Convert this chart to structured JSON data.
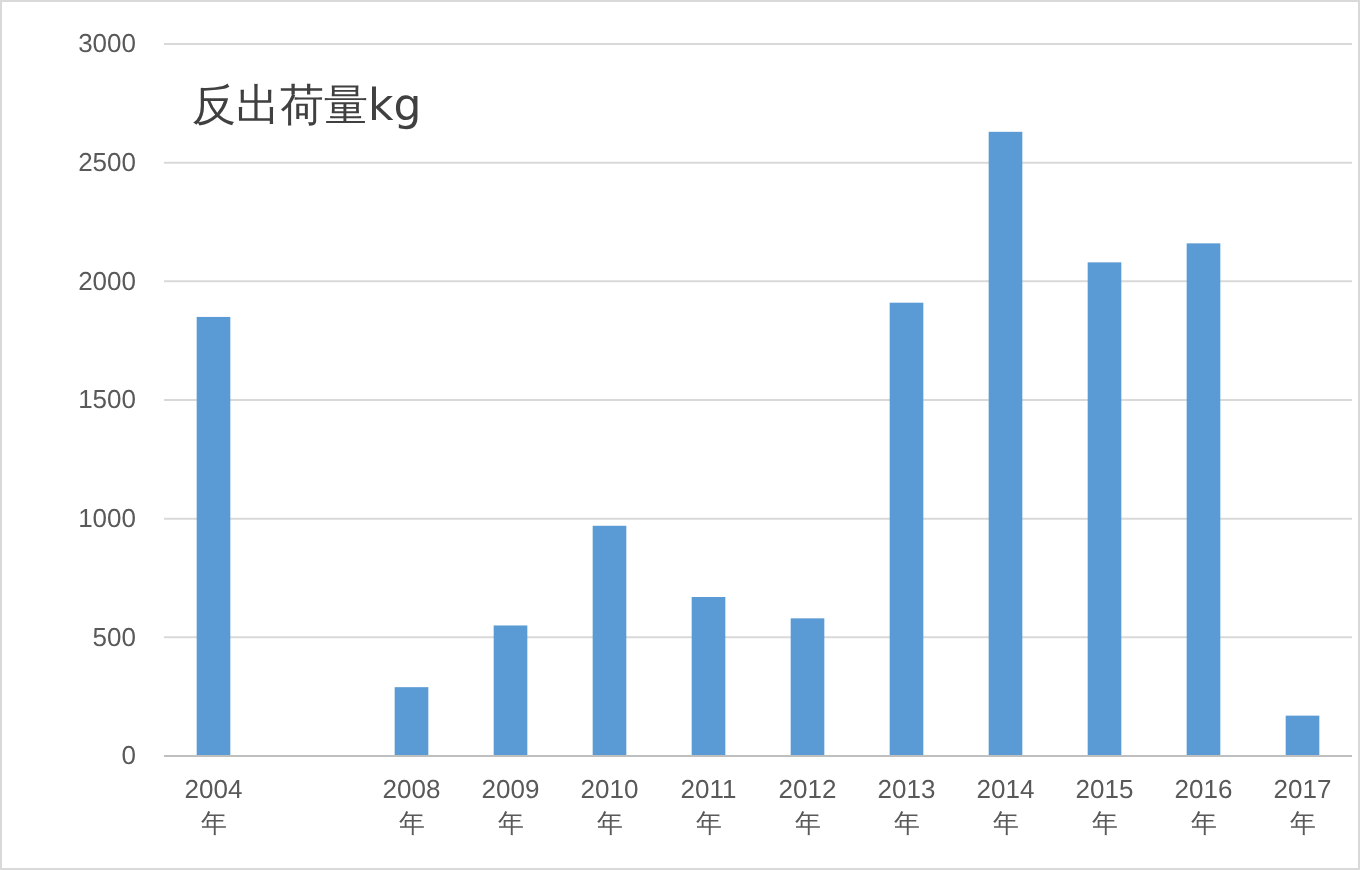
{
  "chart_data": {
    "type": "bar",
    "title": "反出荷量kg",
    "categories": [
      "2004年",
      null,
      "2008年",
      "2009年",
      "2010年",
      "2011年",
      "2012年",
      "2013年",
      "2014年",
      "2015年",
      "2016年",
      "2017年"
    ],
    "values": [
      1850,
      null,
      290,
      550,
      970,
      670,
      580,
      1910,
      2630,
      2080,
      2160,
      170
    ],
    "color": "#5b9bd5",
    "ylim": [
      0,
      3000
    ],
    "yticks": [
      0,
      500,
      1000,
      1500,
      2000,
      2500,
      3000
    ],
    "grid": "y"
  }
}
